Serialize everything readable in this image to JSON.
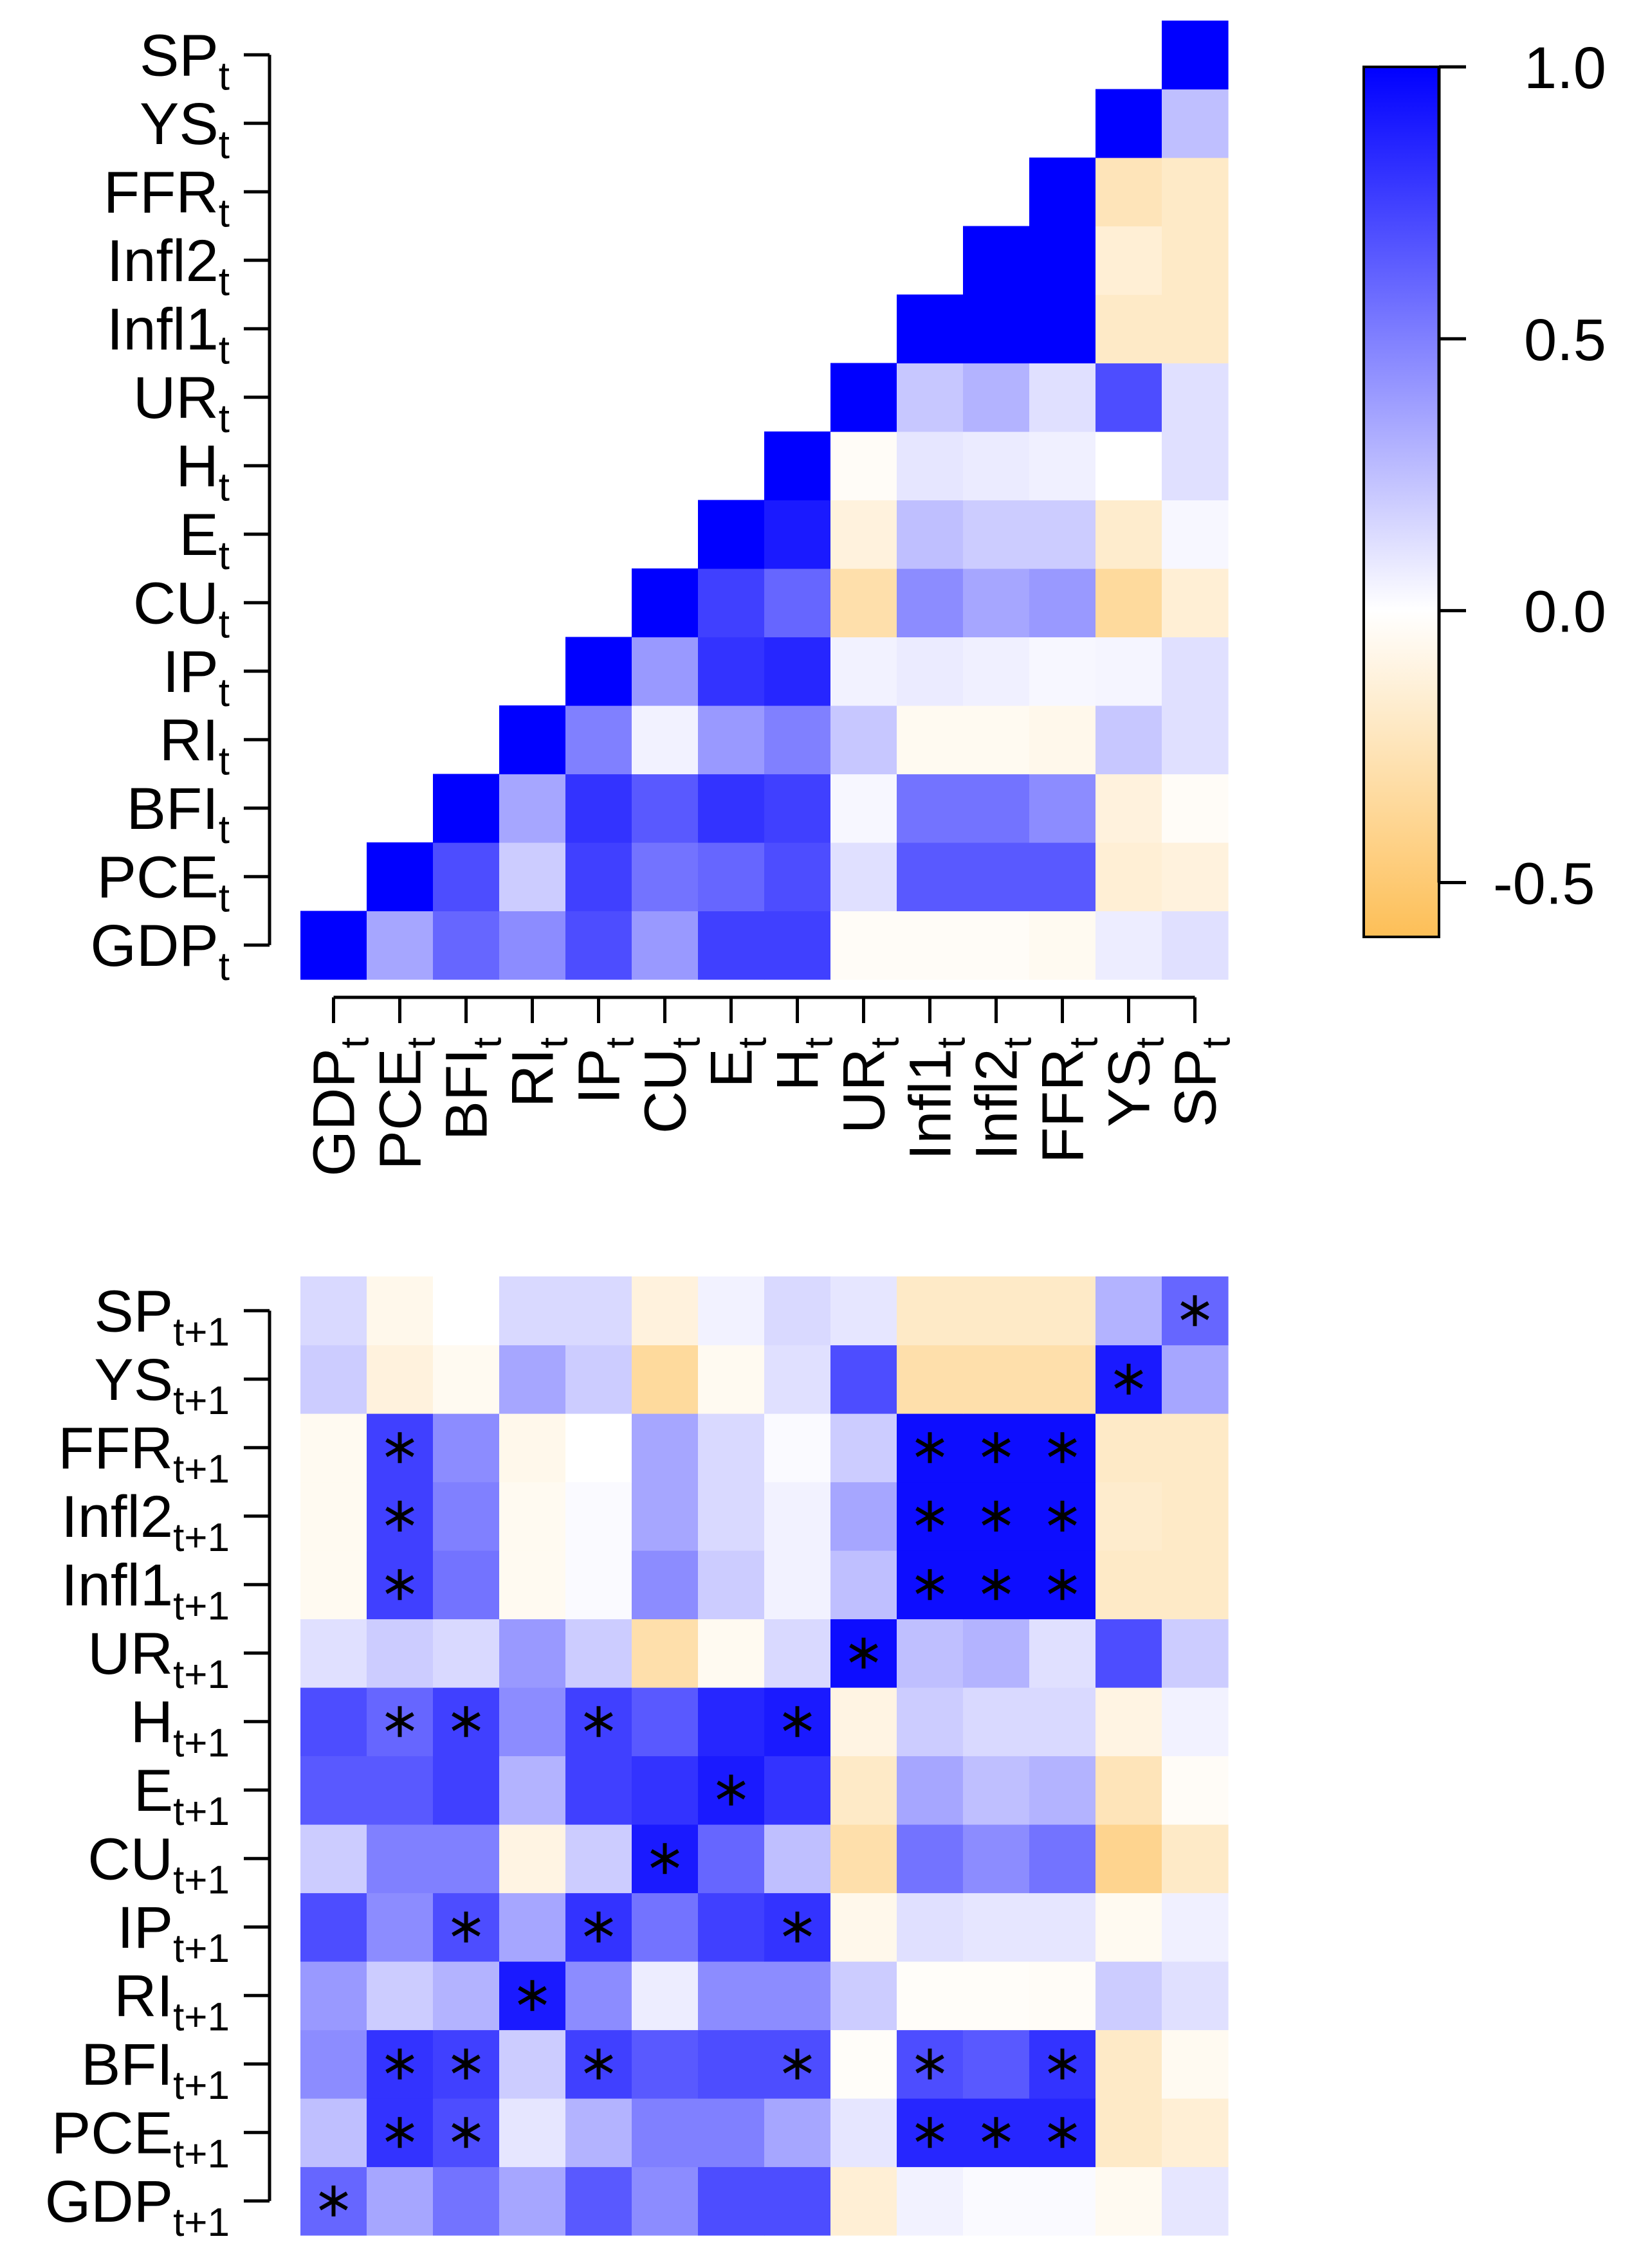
{
  "chart_data": [
    {
      "type": "heatmap",
      "title": "",
      "variables": [
        "GDP",
        "PCE",
        "BFI",
        "RI",
        "IP",
        "CU",
        "E",
        "H",
        "UR",
        "Infl1",
        "Infl2",
        "FFR",
        "YS",
        "SP"
      ],
      "x_subscript": "t",
      "y_subscript": "t",
      "x_tick_labels": [
        "GDP_t",
        "PCE_t",
        "BFI_t",
        "RI_t",
        "IP_t",
        "CU_t",
        "E_t",
        "H_t",
        "UR_t",
        "Infl1_t",
        "Infl2_t",
        "FFR_t",
        "YS_t",
        "SP_t"
      ],
      "y_tick_labels": [
        "GDP_t",
        "PCE_t",
        "BFI_t",
        "RI_t",
        "IP_t",
        "CU_t",
        "E_t",
        "H_t",
        "UR_t",
        "Infl1_t",
        "Infl2_t",
        "FFR_t",
        "YS_t",
        "SP_t"
      ],
      "triangle": "lower",
      "matrix": [
        [
          1.0,
          null,
          null,
          null,
          null,
          null,
          null,
          null,
          null,
          null,
          null,
          null,
          null,
          null
        ],
        [
          0.35,
          1.0,
          null,
          null,
          null,
          null,
          null,
          null,
          null,
          null,
          null,
          null,
          null,
          null
        ],
        [
          0.6,
          0.7,
          1.0,
          null,
          null,
          null,
          null,
          null,
          null,
          null,
          null,
          null,
          null,
          null
        ],
        [
          0.45,
          0.2,
          0.35,
          1.0,
          null,
          null,
          null,
          null,
          null,
          null,
          null,
          null,
          null,
          null
        ],
        [
          0.7,
          0.75,
          0.8,
          0.5,
          1.0,
          null,
          null,
          null,
          null,
          null,
          null,
          null,
          null,
          null
        ],
        [
          0.4,
          0.55,
          0.65,
          0.05,
          0.4,
          1.0,
          null,
          null,
          null,
          null,
          null,
          null,
          null,
          null
        ],
        [
          0.75,
          0.6,
          0.8,
          0.4,
          0.8,
          0.75,
          1.0,
          null,
          null,
          null,
          null,
          null,
          null,
          null
        ],
        [
          0.75,
          0.7,
          0.75,
          0.5,
          0.85,
          0.6,
          0.9,
          1.0,
          null,
          null,
          null,
          null,
          null,
          null
        ],
        [
          -0.03,
          0.12,
          0.03,
          0.22,
          0.05,
          -0.3,
          -0.12,
          -0.03,
          1.0,
          null,
          null,
          null,
          null,
          null
        ],
        [
          -0.03,
          0.65,
          0.55,
          -0.05,
          0.08,
          0.45,
          0.25,
          0.1,
          0.22,
          1.0,
          null,
          null,
          null,
          null
        ],
        [
          -0.03,
          0.65,
          0.55,
          -0.05,
          0.06,
          0.35,
          0.2,
          0.08,
          0.3,
          1.0,
          1.0,
          null,
          null,
          null
        ],
        [
          -0.05,
          0.65,
          0.45,
          -0.07,
          0.03,
          0.4,
          0.2,
          0.06,
          0.12,
          1.0,
          1.0,
          1.0,
          null,
          null
        ],
        [
          0.07,
          -0.15,
          -0.12,
          0.22,
          0.04,
          -0.35,
          -0.18,
          0.0,
          0.7,
          -0.2,
          -0.15,
          -0.25,
          1.0,
          null
        ],
        [
          0.12,
          -0.12,
          -0.03,
          0.12,
          0.12,
          -0.15,
          0.03,
          0.12,
          0.12,
          -0.2,
          -0.2,
          -0.2,
          0.25,
          1.0
        ]
      ],
      "significant": [
        [
          "PCE",
          "BFI"
        ],
        [
          "PCE",
          "IP"
        ],
        [
          "PCE",
          "H"
        ],
        [
          "PCE",
          "Infl1"
        ],
        [
          "PCE",
          "Infl2"
        ],
        [
          "PCE",
          "FFR"
        ],
        [
          "BFI",
          "IP"
        ],
        [
          "BFI",
          "H"
        ],
        [
          "IP",
          "H"
        ],
        [
          "Infl1",
          "Infl2"
        ],
        [
          "Infl1",
          "FFR"
        ],
        [
          "Infl2",
          "FFR"
        ]
      ],
      "significance_marker": "*",
      "color_scale": {
        "min": -0.6,
        "max": 1.0
      }
    },
    {
      "type": "heatmap",
      "title": "",
      "variables": [
        "GDP",
        "PCE",
        "BFI",
        "RI",
        "IP",
        "CU",
        "E",
        "H",
        "UR",
        "Infl1",
        "Infl2",
        "FFR",
        "YS",
        "SP"
      ],
      "x_subscript": "t",
      "y_subscript": "t+1",
      "y_tick_labels": [
        "GDP_t+1",
        "PCE_t+1",
        "BFI_t+1",
        "RI_t+1",
        "IP_t+1",
        "CU_t+1",
        "E_t+1",
        "H_t+1",
        "UR_t+1",
        "Infl1_t+1",
        "Infl2_t+1",
        "FFR_t+1",
        "YS_t+1",
        "SP_t+1"
      ],
      "triangle": "full",
      "matrix": [
        [
          0.6,
          0.35,
          0.55,
          0.35,
          0.65,
          0.45,
          0.7,
          0.7,
          -0.15,
          0.05,
          0.02,
          0.02,
          -0.05,
          0.1
        ],
        [
          0.25,
          0.8,
          0.7,
          0.1,
          0.3,
          0.5,
          0.5,
          0.35,
          0.1,
          0.85,
          0.85,
          0.85,
          -0.2,
          -0.15
        ],
        [
          0.45,
          0.8,
          0.75,
          0.2,
          0.75,
          0.65,
          0.7,
          0.7,
          -0.02,
          0.7,
          0.65,
          0.8,
          -0.2,
          -0.05
        ],
        [
          0.4,
          0.2,
          0.3,
          0.9,
          0.45,
          0.07,
          0.45,
          0.45,
          0.2,
          -0.02,
          -0.02,
          -0.03,
          0.2,
          0.12
        ],
        [
          0.7,
          0.45,
          0.7,
          0.35,
          0.8,
          0.55,
          0.75,
          0.8,
          -0.07,
          0.12,
          0.1,
          0.1,
          -0.05,
          0.06
        ],
        [
          0.2,
          0.5,
          0.5,
          -0.1,
          0.2,
          0.9,
          0.6,
          0.25,
          -0.3,
          0.55,
          0.45,
          0.55,
          -0.4,
          -0.2
        ],
        [
          0.65,
          0.65,
          0.75,
          0.3,
          0.75,
          0.8,
          0.9,
          0.8,
          -0.2,
          0.35,
          0.25,
          0.3,
          -0.25,
          -0.03
        ],
        [
          0.7,
          0.6,
          0.75,
          0.45,
          0.75,
          0.65,
          0.85,
          0.9,
          -0.1,
          0.2,
          0.15,
          0.15,
          -0.1,
          0.05
        ],
        [
          0.12,
          0.2,
          0.15,
          0.4,
          0.2,
          -0.3,
          -0.05,
          0.15,
          0.95,
          0.25,
          0.3,
          0.12,
          0.7,
          0.2
        ],
        [
          -0.05,
          0.75,
          0.55,
          -0.05,
          0.02,
          0.45,
          0.2,
          0.05,
          0.25,
          0.95,
          0.95,
          0.95,
          -0.2,
          -0.2
        ],
        [
          -0.05,
          0.75,
          0.5,
          -0.05,
          0.02,
          0.35,
          0.15,
          0.05,
          0.35,
          0.95,
          0.95,
          0.95,
          -0.18,
          -0.2
        ],
        [
          -0.05,
          0.75,
          0.45,
          -0.07,
          0.0,
          0.35,
          0.15,
          0.02,
          0.2,
          0.95,
          0.95,
          0.95,
          -0.2,
          -0.2
        ],
        [
          0.2,
          -0.12,
          -0.05,
          0.35,
          0.2,
          -0.35,
          -0.05,
          0.12,
          0.7,
          -0.3,
          -0.3,
          -0.3,
          0.9,
          0.35
        ],
        [
          0.15,
          -0.07,
          0.0,
          0.15,
          0.15,
          -0.12,
          0.05,
          0.15,
          0.1,
          -0.2,
          -0.2,
          -0.2,
          0.3,
          0.6
        ]
      ],
      "significant_cells": [
        [
          0,
          0
        ],
        [
          1,
          1
        ],
        [
          1,
          2
        ],
        [
          1,
          9
        ],
        [
          1,
          10
        ],
        [
          1,
          11
        ],
        [
          2,
          1
        ],
        [
          2,
          2
        ],
        [
          2,
          4
        ],
        [
          2,
          7
        ],
        [
          2,
          9
        ],
        [
          2,
          11
        ],
        [
          3,
          3
        ],
        [
          4,
          2
        ],
        [
          4,
          4
        ],
        [
          4,
          7
        ],
        [
          5,
          5
        ],
        [
          6,
          6
        ],
        [
          7,
          1
        ],
        [
          7,
          2
        ],
        [
          7,
          4
        ],
        [
          7,
          7
        ],
        [
          8,
          8
        ],
        [
          9,
          1
        ],
        [
          9,
          9
        ],
        [
          9,
          10
        ],
        [
          9,
          11
        ],
        [
          10,
          1
        ],
        [
          10,
          9
        ],
        [
          10,
          10
        ],
        [
          10,
          11
        ],
        [
          11,
          1
        ],
        [
          11,
          9
        ],
        [
          11,
          10
        ],
        [
          11,
          11
        ],
        [
          12,
          12
        ],
        [
          13,
          13
        ]
      ],
      "significance_marker": "*",
      "color_scale": {
        "min": -0.6,
        "max": 1.0
      }
    }
  ],
  "legend": {
    "type": "colorbar",
    "ticks": [
      {
        "value": 1.0,
        "label": "1.0"
      },
      {
        "value": 0.5,
        "label": "0.5"
      },
      {
        "value": 0.0,
        "label": "0.0"
      },
      {
        "value": -0.5,
        "label": "-0.5"
      }
    ],
    "range": [
      -0.6,
      1.0
    ],
    "colors": {
      "high": "#0000ff",
      "mid": "#ffffff",
      "low": "#fdbf57"
    }
  }
}
